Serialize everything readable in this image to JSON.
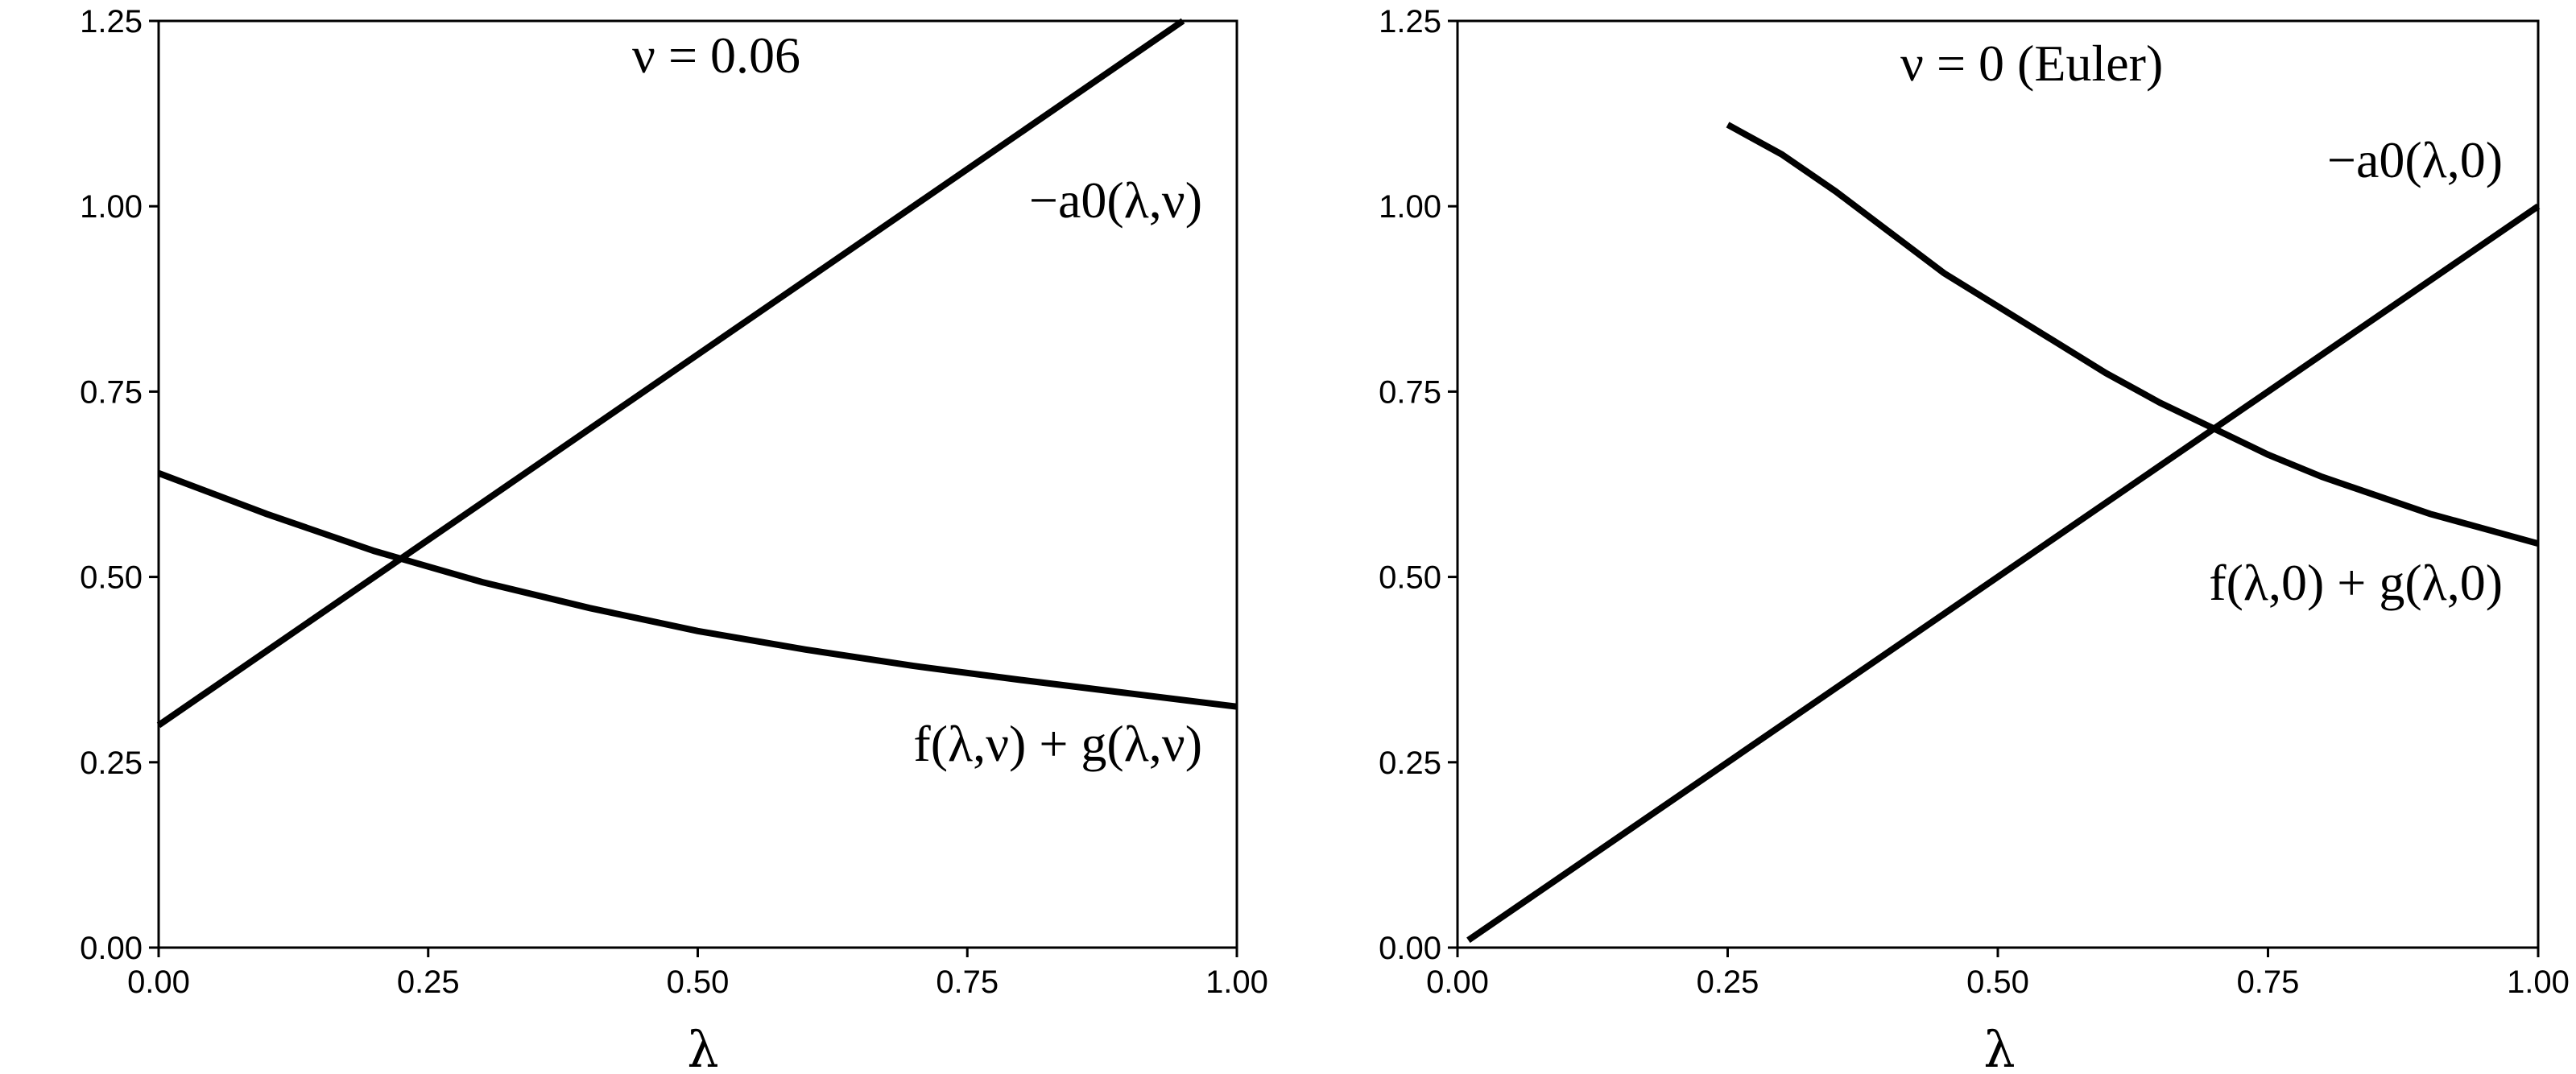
{
  "chart_data": [
    {
      "type": "line",
      "title": "",
      "xlabel": "λ",
      "ylabel": "",
      "xlim": [
        0,
        1
      ],
      "ylim": [
        0,
        1.25
      ],
      "xticks": [
        "0.00",
        "0.25",
        "0.50",
        "0.75",
        "1.00"
      ],
      "yticks": [
        "0.00",
        "0.25",
        "0.50",
        "0.75",
        "1.00",
        "1.25"
      ],
      "grid": false,
      "annotations": [
        {
          "text": "ν = 0.06"
        },
        {
          "text": "−a0(λ,ν)"
        },
        {
          "text": "f(λ,ν) + g(λ,ν)"
        }
      ],
      "series": [
        {
          "x": [
            0.0,
            0.95
          ],
          "y": [
            0.3,
            1.25
          ]
        },
        {
          "x": [
            0.0,
            0.1,
            0.2,
            0.3,
            0.4,
            0.5,
            0.6,
            0.7,
            0.8,
            0.9,
            1.0
          ],
          "y": [
            0.64,
            0.585,
            0.535,
            0.493,
            0.458,
            0.427,
            0.402,
            0.38,
            0.361,
            0.343,
            0.325
          ]
        }
      ]
    },
    {
      "type": "line",
      "title": "",
      "xlabel": "λ",
      "ylabel": "",
      "xlim": [
        0,
        1
      ],
      "ylim": [
        0,
        1.25
      ],
      "xticks": [
        "0.00",
        "0.25",
        "0.50",
        "0.75",
        "1.00"
      ],
      "yticks": [
        "0.00",
        "0.25",
        "0.50",
        "0.75",
        "1.00",
        "1.25"
      ],
      "grid": false,
      "annotations": [
        {
          "text": "ν = 0 (Euler)"
        },
        {
          "text": "−a0(λ,0)"
        },
        {
          "text": "f(λ,0) + g(λ,0)"
        }
      ],
      "series": [
        {
          "x": [
            0.01,
            1.0
          ],
          "y": [
            0.01,
            1.0
          ]
        },
        {
          "x": [
            0.25,
            0.3,
            0.35,
            0.4,
            0.45,
            0.5,
            0.55,
            0.6,
            0.65,
            0.7,
            0.75,
            0.8,
            0.85,
            0.9,
            0.95,
            1.0
          ],
          "y": [
            1.11,
            1.07,
            1.02,
            0.965,
            0.91,
            0.865,
            0.82,
            0.775,
            0.735,
            0.7,
            0.665,
            0.635,
            0.61,
            0.585,
            0.565,
            0.545
          ]
        }
      ]
    }
  ]
}
